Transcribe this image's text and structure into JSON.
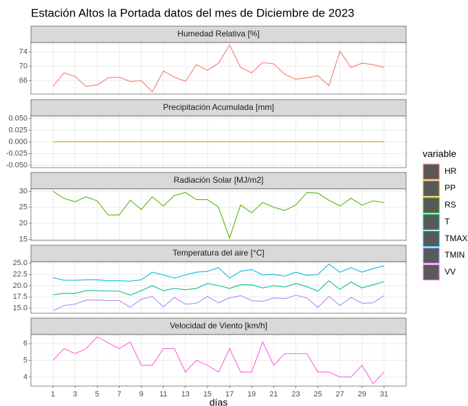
{
  "title": "Estación Altos la Portada datos del mes de Diciembre de 2023",
  "legend_title": "variable",
  "chart_data": [
    {
      "type": "line",
      "title": "Humedad Relativa [%]",
      "x": [
        1,
        2,
        3,
        4,
        5,
        6,
        7,
        8,
        9,
        10,
        11,
        12,
        13,
        14,
        15,
        16,
        17,
        18,
        19,
        20,
        21,
        22,
        23,
        24,
        25,
        26,
        27,
        28,
        29,
        30,
        31
      ],
      "xlim": [
        -1,
        33
      ],
      "xticks": [
        1,
        3,
        5,
        7,
        9,
        11,
        13,
        15,
        17,
        19,
        21,
        23,
        25,
        27,
        29,
        31
      ],
      "ylim": [
        62.25,
        76.65
      ],
      "yticks": [
        66,
        70,
        74
      ],
      "grid": true,
      "series": [
        {
          "name": "HR",
          "color": "#F8766D",
          "values": [
            64.4,
            68.2,
            67.2,
            64.4,
            64.8,
            66.8,
            67,
            65.8,
            66,
            62.9,
            68.7,
            67,
            65.8,
            70.5,
            68.9,
            70.9,
            76,
            69.7,
            68.2,
            71.1,
            70.7,
            67.8,
            66.4,
            66.8,
            67.4,
            64.6,
            74.2,
            69.7,
            70.9,
            70.5,
            69.7
          ]
        }
      ]
    },
    {
      "type": "line",
      "title": "Precipitación Acumulada [mm]",
      "x": [
        1,
        2,
        3,
        4,
        5,
        6,
        7,
        8,
        9,
        10,
        11,
        12,
        13,
        14,
        15,
        16,
        17,
        18,
        19,
        20,
        21,
        22,
        23,
        24,
        25,
        26,
        27,
        28,
        29,
        30,
        31
      ],
      "xlim": [
        -1,
        33
      ],
      "xticks": [
        1,
        3,
        5,
        7,
        9,
        11,
        13,
        15,
        17,
        19,
        21,
        23,
        25,
        27,
        29,
        31
      ],
      "ylim": [
        -0.055,
        0.055
      ],
      "yticks": [
        {
          "value": -0.05,
          "label": "-0.050"
        },
        {
          "value": -0.025,
          "label": "-0.025"
        },
        {
          "value": 0,
          "label": "0.000"
        },
        {
          "value": 0.025,
          "label": "0.025"
        },
        {
          "value": 0.05,
          "label": "0.050"
        }
      ],
      "grid": true,
      "series": [
        {
          "name": "PP",
          "color": "#C49A00",
          "values": [
            0,
            0,
            0,
            0,
            0,
            0,
            0,
            0,
            0,
            0,
            0,
            0,
            0,
            0,
            0,
            0,
            0,
            0,
            0,
            0,
            0,
            0,
            0,
            0,
            0,
            0,
            0,
            0,
            0,
            0,
            0
          ]
        }
      ]
    },
    {
      "type": "line",
      "title": "Radiación Solar [MJ/m2]",
      "x": [
        1,
        2,
        3,
        4,
        5,
        6,
        7,
        8,
        9,
        10,
        11,
        12,
        13,
        14,
        15,
        16,
        17,
        18,
        19,
        20,
        21,
        22,
        23,
        24,
        25,
        26,
        27,
        28,
        29,
        30,
        31
      ],
      "xlim": [
        -1,
        33
      ],
      "xticks": [
        1,
        3,
        5,
        7,
        9,
        11,
        13,
        15,
        17,
        19,
        21,
        23,
        25,
        27,
        29,
        31
      ],
      "ylim": [
        14.67,
        30.73
      ],
      "yticks": [
        15,
        20,
        25,
        30
      ],
      "grid": true,
      "series": [
        {
          "name": "RS",
          "color": "#53B400",
          "values": [
            30,
            27.8,
            26.7,
            28.3,
            27,
            22.6,
            22.6,
            27.2,
            24.3,
            28.3,
            25.4,
            28.7,
            29.6,
            27.4,
            27.4,
            25,
            15.4,
            25.7,
            23.3,
            26.5,
            25,
            24,
            25.7,
            29.6,
            29.4,
            27.2,
            25.4,
            27.8,
            25.7,
            27,
            26.5
          ]
        }
      ]
    },
    {
      "type": "line",
      "title": "Temperatura del aire [°C]",
      "x": [
        1,
        2,
        3,
        4,
        5,
        6,
        7,
        8,
        9,
        10,
        11,
        12,
        13,
        14,
        15,
        16,
        17,
        18,
        19,
        20,
        21,
        22,
        23,
        24,
        25,
        26,
        27,
        28,
        29,
        30,
        31
      ],
      "xlim": [
        -1,
        33
      ],
      "xticks": [
        1,
        3,
        5,
        7,
        9,
        11,
        13,
        15,
        17,
        19,
        21,
        23,
        25,
        27,
        29,
        31
      ],
      "ylim": [
        13.88,
        25.32
      ],
      "yticks": [
        {
          "value": 15,
          "label": "15.0"
        },
        {
          "value": 17.5,
          "label": "17.5"
        },
        {
          "value": 20,
          "label": "20.0"
        },
        {
          "value": 22.5,
          "label": "22.5"
        },
        {
          "value": 25,
          "label": "25.0"
        }
      ],
      "grid": true,
      "series": [
        {
          "name": "T",
          "color": "#00C094",
          "values": [
            18,
            18.3,
            18.3,
            18.9,
            18.9,
            18.8,
            18.8,
            17.9,
            18.9,
            20,
            18.9,
            19.4,
            19.1,
            19.4,
            20.5,
            20,
            19.4,
            20.2,
            20.2,
            19.5,
            20,
            19.7,
            20.5,
            19.8,
            18.8,
            21.1,
            19.2,
            20.8,
            19.5,
            20.2,
            20.9
          ]
        },
        {
          "name": "TMAX",
          "color": "#00B6EB",
          "values": [
            21.8,
            21.2,
            21.2,
            21.3,
            21.3,
            21.1,
            21.1,
            21,
            21.3,
            23,
            22.4,
            21.7,
            22.4,
            23,
            23.2,
            24,
            21.7,
            23.2,
            23.6,
            22.4,
            22.5,
            22.1,
            23,
            22.3,
            22.5,
            24.8,
            23,
            24,
            23,
            23.8,
            24.4
          ]
        },
        {
          "name": "TMIN",
          "color": "#A58AFF",
          "values": [
            14.4,
            15.6,
            15.9,
            16.8,
            16.8,
            16.7,
            16.7,
            15.2,
            17,
            17.6,
            15.3,
            17.4,
            15.9,
            16.1,
            17.6,
            16.2,
            17.3,
            17.8,
            16.7,
            16.5,
            17.3,
            17.1,
            17.9,
            17.3,
            15.2,
            17.6,
            15.6,
            17.4,
            16.1,
            16.2,
            17.8
          ]
        }
      ]
    },
    {
      "type": "line",
      "title": "Velocidad de Viento [km/h]",
      "x": [
        1,
        2,
        3,
        4,
        5,
        6,
        7,
        8,
        9,
        10,
        11,
        12,
        13,
        14,
        15,
        16,
        17,
        18,
        19,
        20,
        21,
        22,
        23,
        24,
        25,
        26,
        27,
        28,
        29,
        30,
        31
      ],
      "xlim": [
        -1,
        33
      ],
      "xticks": [
        1,
        3,
        5,
        7,
        9,
        11,
        13,
        15,
        17,
        19,
        21,
        23,
        25,
        27,
        29,
        31
      ],
      "xlabel": "días",
      "ylim": [
        3.46,
        6.54
      ],
      "yticks": [
        4,
        5,
        6
      ],
      "grid": true,
      "series": [
        {
          "name": "VV",
          "color": "#FB61D7",
          "values": [
            5,
            5.7,
            5.4,
            5.7,
            6.4,
            6.05,
            5.7,
            6.1,
            4.7,
            4.7,
            5.7,
            5.7,
            4.3,
            5,
            4.7,
            4.3,
            5.7,
            4.3,
            4.3,
            6.1,
            4.7,
            5.4,
            5.4,
            5.4,
            4.3,
            4.3,
            4,
            4,
            4.7,
            3.6,
            4.3
          ]
        }
      ]
    }
  ]
}
